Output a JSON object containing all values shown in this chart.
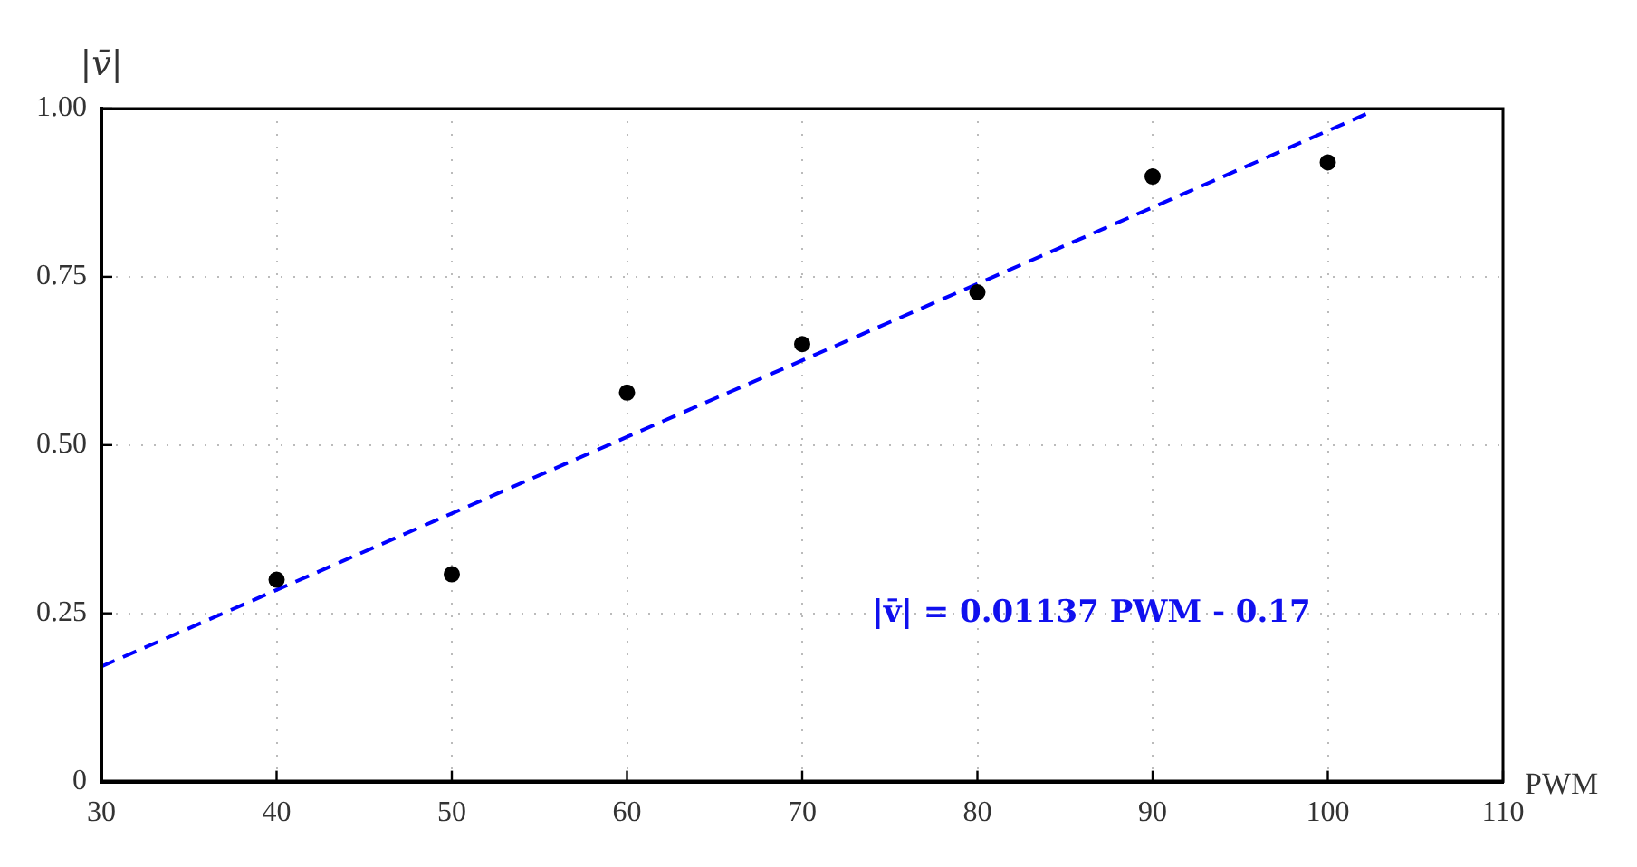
{
  "chart_data": {
    "type": "scatter",
    "ylabel": "|v̄|",
    "xlabel": "PWM",
    "annotations": [
      "|v̄| = 0.01137 PWM - 0.17"
    ],
    "xlim": [
      30,
      110
    ],
    "xticks": [
      30,
      40,
      50,
      60,
      70,
      80,
      90,
      100,
      110
    ],
    "ylim": [
      0,
      1
    ],
    "yticks": [
      0,
      {
        "value": 0.25,
        "label": "0.25"
      },
      {
        "value": 0.5,
        "label": "0.50"
      },
      {
        "value": 0.75,
        "label": "0.75"
      },
      {
        "value": 1,
        "label": "1.00"
      }
    ],
    "grid": true,
    "legend": false,
    "marker": "circle",
    "series": [
      {
        "type": "scatter",
        "color": "#000000",
        "x": [
          40,
          50,
          60,
          70,
          80,
          90,
          100
        ],
        "values": [
          0.3,
          0.308,
          0.578,
          0.65,
          0.727,
          0.899,
          0.92
        ]
      },
      {
        "type": "line",
        "color": "#0000ff",
        "line_style": "dashed",
        "marker": "none",
        "x": [
          30,
          102.2
        ],
        "values": [
          0.171,
          0.992
        ]
      }
    ]
  }
}
